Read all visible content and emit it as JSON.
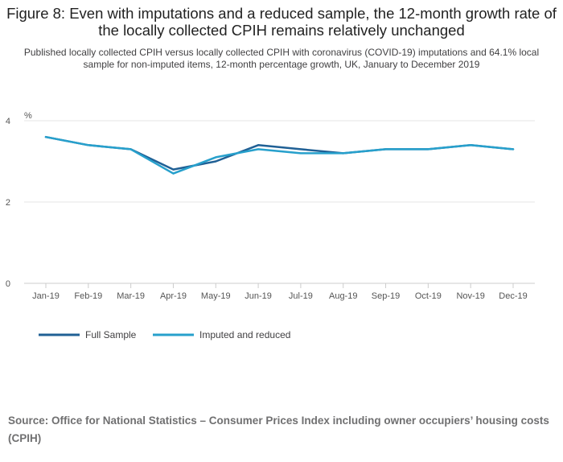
{
  "page": {
    "title": "Figure 8: Even with imputations and a reduced sample, the 12-month growth rate of the locally collected CPIH remains relatively unchanged",
    "subtitle": "Published locally collected CPIH versus locally collected CPIH with coronavirus (COVID-19) imputations and 64.1% local sample for non-imputed items, 12-month percentage growth, UK, January to December 2019",
    "source": "Source: Office for National Statistics – Consumer Prices Index including owner occupiers’ housing costs (CPIH)"
  },
  "chart_data": {
    "type": "line",
    "title": "Figure 8: Even with imputations and a reduced sample, the 12-month growth rate of the locally collected CPIH remains relatively unchanged",
    "xlabel": "",
    "ylabel": "%",
    "ylim": [
      0,
      4
    ],
    "yticks": [
      "4",
      "2",
      "0"
    ],
    "ytick_values": [
      4,
      2,
      0
    ],
    "grid": true,
    "legend_position": "bottom-left",
    "categories": [
      "Jan-19",
      "Feb-19",
      "Mar-19",
      "Apr-19",
      "May-19",
      "Jun-19",
      "Jul-19",
      "Aug-19",
      "Sep-19",
      "Oct-19",
      "Nov-19",
      "Dec-19"
    ],
    "series": [
      {
        "name": "Full Sample",
        "color": "#206095",
        "values": [
          3.6,
          3.4,
          3.3,
          2.8,
          3.0,
          3.4,
          3.3,
          3.2,
          3.3,
          3.3,
          3.4,
          3.3
        ]
      },
      {
        "name": "Imputed and reduced",
        "color": "#27a0cc",
        "values": [
          3.6,
          3.4,
          3.3,
          2.7,
          3.1,
          3.3,
          3.2,
          3.2,
          3.3,
          3.3,
          3.4,
          3.3
        ]
      }
    ]
  }
}
